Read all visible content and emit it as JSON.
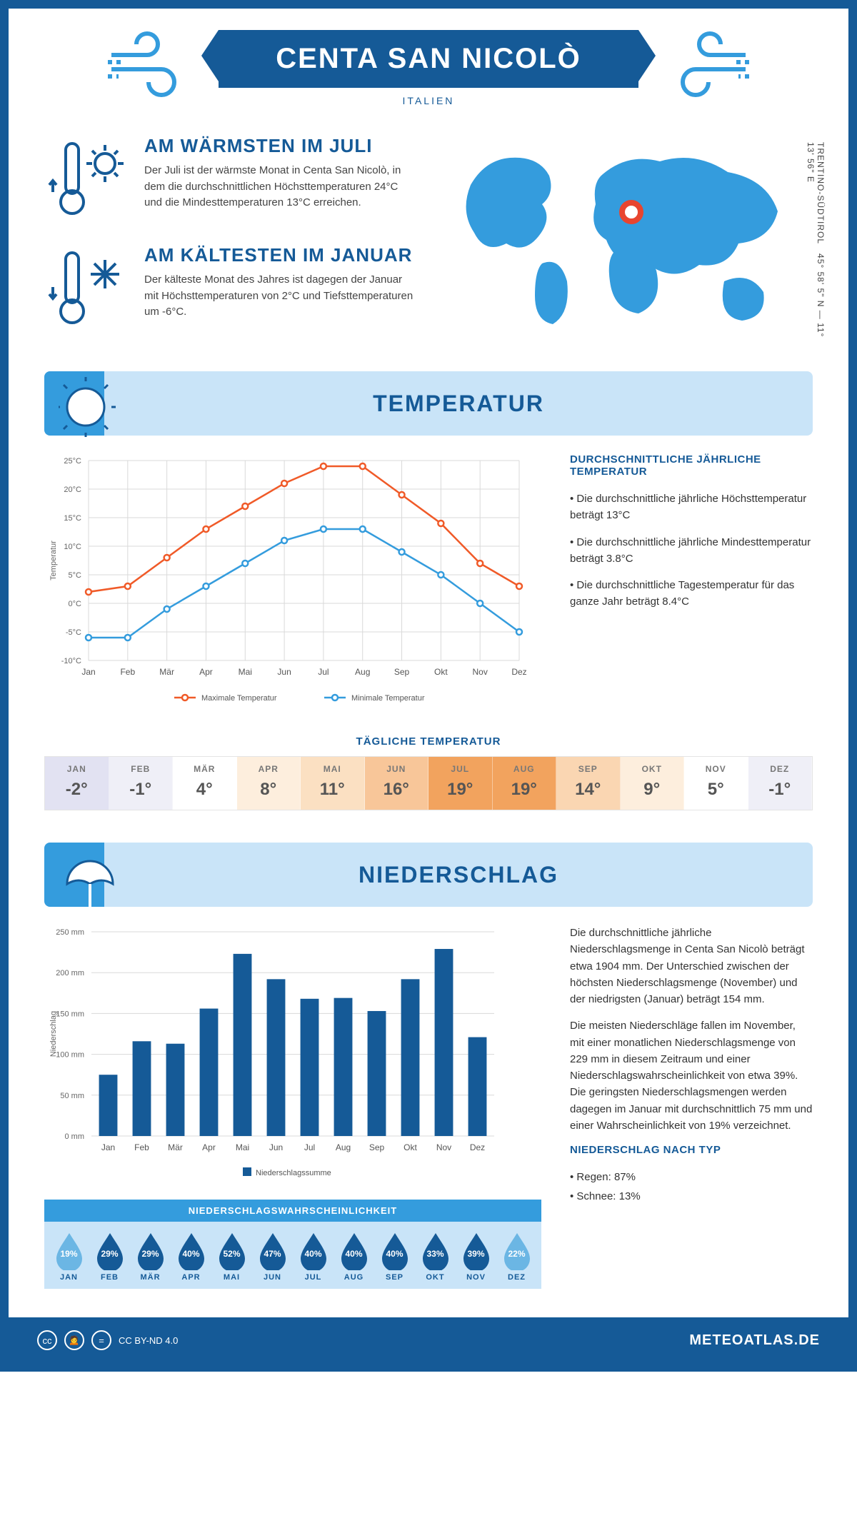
{
  "colors": {
    "primary": "#155a97",
    "accent": "#349cdd",
    "banner_bg": "#c9e4f8",
    "max_line": "#f05a28",
    "min_line": "#349cdd",
    "bar_fill": "#155a97",
    "grid": "#d9d9d9",
    "text": "#444444"
  },
  "header": {
    "title": "CENTA SAN NICOLÒ",
    "subtitle": "ITALIEN",
    "coords": "45° 58' 5\" N — 11° 13' 56\" E",
    "region": "TRENTINO-SÜDTIROL"
  },
  "info": {
    "warm_title": "AM WÄRMSTEN IM JULI",
    "warm_text": "Der Juli ist der wärmste Monat in Centa San Nicolò, in dem die durchschnittlichen Höchsttemperaturen 24°C und die Mindesttemperaturen 13°C erreichen.",
    "cold_title": "AM KÄLTESTEN IM JANUAR",
    "cold_text": "Der kälteste Monat des Jahres ist dagegen der Januar mit Höchsttemperaturen von 2°C und Tiefsttemperaturen um -6°C."
  },
  "section": {
    "temp": "TEMPERATUR",
    "precip": "NIEDERSCHLAG"
  },
  "months": [
    "Jan",
    "Feb",
    "Mär",
    "Apr",
    "Mai",
    "Jun",
    "Jul",
    "Aug",
    "Sep",
    "Okt",
    "Nov",
    "Dez"
  ],
  "months_upper": [
    "JAN",
    "FEB",
    "MÄR",
    "APR",
    "MAI",
    "JUN",
    "JUL",
    "AUG",
    "SEP",
    "OKT",
    "NOV",
    "DEZ"
  ],
  "temp_chart": {
    "ylabel": "Temperatur",
    "ylim": [
      -10,
      25
    ],
    "ytick_step": 5,
    "max_series": [
      2,
      3,
      8,
      13,
      17,
      21,
      24,
      24,
      19,
      14,
      7,
      3
    ],
    "min_series": [
      -6,
      -6,
      -1,
      3,
      7,
      11,
      13,
      13,
      9,
      5,
      0,
      -5
    ],
    "legend_max": "Maximale Temperatur",
    "legend_min": "Minimale Temperatur"
  },
  "temp_side": {
    "title": "DURCHSCHNITTLICHE JÄHRLICHE TEMPERATUR",
    "b1": "• Die durchschnittliche jährliche Höchsttemperatur beträgt 13°C",
    "b2": "• Die durchschnittliche jährliche Mindesttemperatur beträgt 3.8°C",
    "b3": "• Die durchschnittliche Tagestemperatur für das ganze Jahr beträgt 8.4°C"
  },
  "daily": {
    "title": "TÄGLICHE TEMPERATUR",
    "values": [
      "-2°",
      "-1°",
      "4°",
      "8°",
      "11°",
      "16°",
      "19°",
      "19°",
      "14°",
      "9°",
      "5°",
      "-1°"
    ],
    "cell_bg": [
      "#e2e2f2",
      "#efeff7",
      "#ffffff",
      "#fdeedd",
      "#fbe0c2",
      "#f8c699",
      "#f2a35e",
      "#f2a35e",
      "#fad6b2",
      "#fdeedd",
      "#ffffff",
      "#efeff7"
    ]
  },
  "precip_chart": {
    "ylabel": "Niederschlag",
    "ylim": [
      0,
      250
    ],
    "ytick_step": 50,
    "unit": " mm",
    "values": [
      75,
      116,
      113,
      156,
      223,
      192,
      168,
      169,
      153,
      192,
      229,
      121
    ],
    "legend": "Niederschlagssumme"
  },
  "precip_side": {
    "p1": "Die durchschnittliche jährliche Niederschlagsmenge in Centa San Nicolò beträgt etwa 1904 mm. Der Unterschied zwischen der höchsten Niederschlagsmenge (November) und der niedrigsten (Januar) beträgt 154 mm.",
    "p2": "Die meisten Niederschläge fallen im November, mit einer monatlichen Niederschlagsmenge von 229 mm in diesem Zeitraum und einer Niederschlagswahrscheinlichkeit von etwa 39%. Die geringsten Niederschlagsmengen werden dagegen im Januar mit durchschnittlich 75 mm und einer Wahrscheinlichkeit von 19% verzeichnet.",
    "type_title": "NIEDERSCHLAG NACH TYP",
    "type_rain": "• Regen: 87%",
    "type_snow": "• Schnee: 13%"
  },
  "prob": {
    "title": "NIEDERSCHLAGSWAHRSCHEINLICHKEIT",
    "values": [
      "19%",
      "29%",
      "29%",
      "40%",
      "52%",
      "47%",
      "40%",
      "40%",
      "40%",
      "33%",
      "39%",
      "22%"
    ],
    "drop_dark": "#155a97",
    "drop_light": "#6bb6e4"
  },
  "footer": {
    "license": "CC BY-ND 4.0",
    "brand": "METEOATLAS.DE"
  }
}
